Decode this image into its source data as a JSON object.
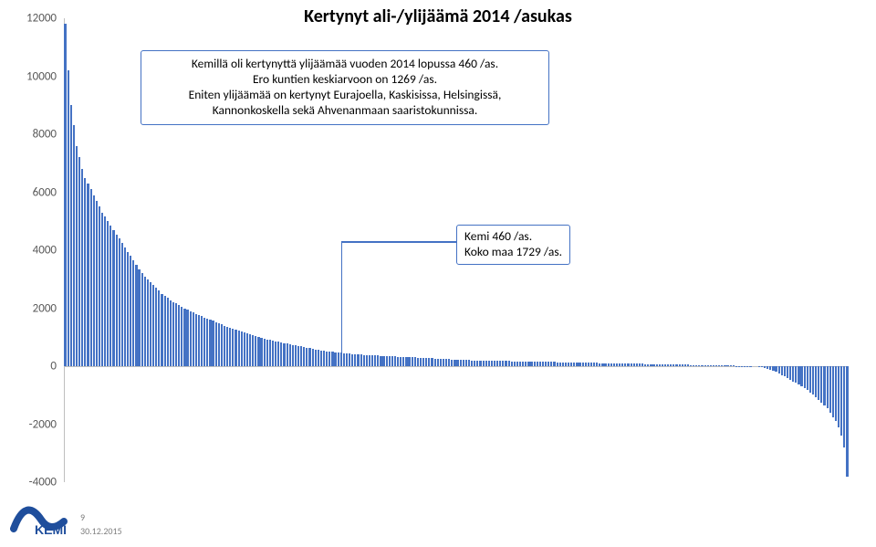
{
  "title": "Kertynyt ali-/ylijäämä 2014  /asukas",
  "chart": {
    "type": "bar",
    "ylim": [
      -4000,
      12000
    ],
    "ytick_step": 2000,
    "bar_color": "#4472c4",
    "axis_color": "#bfbfbf",
    "label_color": "#595959",
    "label_fontsize": 13,
    "yticks": [
      -4000,
      -2000,
      0,
      2000,
      4000,
      6000,
      8000,
      10000,
      12000
    ],
    "bar_values": [
      11800,
      10200,
      9000,
      8300,
      7600,
      7200,
      6800,
      6500,
      6300,
      6100,
      5900,
      5700,
      5500,
      5300,
      5150,
      5000,
      4850,
      4700,
      4550,
      4400,
      4250,
      4100,
      3950,
      3800,
      3650,
      3500,
      3350,
      3200,
      3100,
      3000,
      2900,
      2800,
      2700,
      2600,
      2500,
      2420,
      2350,
      2280,
      2220,
      2160,
      2100,
      2050,
      2000,
      1950,
      1900,
      1850,
      1800,
      1760,
      1720,
      1680,
      1640,
      1600,
      1560,
      1520,
      1480,
      1440,
      1400,
      1360,
      1320,
      1280,
      1250,
      1220,
      1190,
      1160,
      1130,
      1100,
      1070,
      1040,
      1010,
      980,
      950,
      920,
      900,
      880,
      860,
      840,
      820,
      800,
      780,
      760,
      740,
      720,
      700,
      680,
      660,
      640,
      620,
      600,
      580,
      560,
      540,
      520,
      510,
      500,
      490,
      480,
      470,
      460,
      450,
      440,
      430,
      420,
      410,
      400,
      395,
      390,
      385,
      380,
      375,
      370,
      365,
      360,
      355,
      350,
      345,
      340,
      335,
      330,
      325,
      320,
      315,
      310,
      305,
      300,
      295,
      290,
      285,
      280,
      275,
      270,
      265,
      260,
      255,
      250,
      245,
      240,
      235,
      230,
      225,
      220,
      215,
      210,
      205,
      200,
      198,
      196,
      194,
      192,
      190,
      188,
      186,
      184,
      182,
      180,
      178,
      176,
      174,
      172,
      170,
      168,
      166,
      164,
      162,
      160,
      158,
      156,
      154,
      152,
      150,
      148,
      146,
      144,
      142,
      140,
      138,
      136,
      134,
      132,
      130,
      128,
      126,
      124,
      122,
      120,
      118,
      116,
      114,
      112,
      110,
      108,
      106,
      104,
      102,
      100,
      98,
      96,
      94,
      92,
      90,
      88,
      86,
      84,
      82,
      80,
      78,
      76,
      74,
      72,
      70,
      68,
      66,
      64,
      62,
      60,
      58,
      56,
      54,
      52,
      50,
      48,
      46,
      44,
      42,
      40,
      38,
      36,
      34,
      32,
      30,
      28,
      26,
      24,
      22,
      20,
      18,
      16,
      14,
      12,
      10,
      8,
      6,
      4,
      2,
      0,
      -10,
      -30,
      -50,
      -80,
      -120,
      -160,
      -200,
      -250,
      -300,
      -350,
      -400,
      -460,
      -520,
      -580,
      -640,
      -700,
      -760,
      -830,
      -900,
      -980,
      -1060,
      -1150,
      -1250,
      -1350,
      -1450,
      -1600,
      -1750,
      -1900,
      -2100,
      -2400,
      -2800,
      -3800
    ],
    "highlight_index": 97,
    "n_bars": 276
  },
  "note1": {
    "lines": [
      "Kemillä oli kertynyttä ylijäämää vuoden 2014 lopussa 460 /as.",
      "Ero kuntien keskiarvoon on 1269 /as.",
      "Eniten ylijäämää on kertynyt Eurajoella, Kaskisissa, Helsingissä,",
      "Kannonkoskella sekä Ahvenanmaan saaristokunnissa."
    ]
  },
  "callout": {
    "lines": [
      "Kemi 460 /as.",
      "Koko maa 1729 /as."
    ]
  },
  "footer": {
    "page": "9",
    "date": "30.12.2015"
  },
  "logo": {
    "text": "KEMI",
    "color": "#1f4e9c"
  }
}
